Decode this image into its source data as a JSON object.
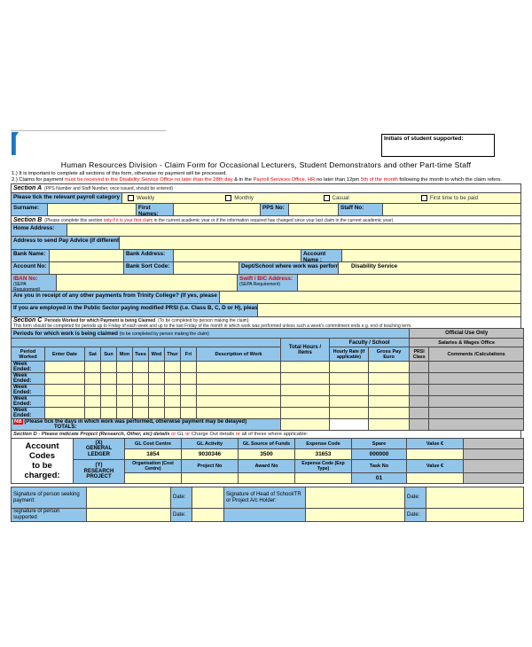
{
  "colors": {
    "cell_blue": "#92c5ea",
    "cell_yellow": "#ffffcc",
    "cell_gray": "#c0c0c0",
    "red_text": "#e00000",
    "logo_blue": "#1b76c0"
  },
  "header": {
    "initials_box_label": "Initials of student supported:",
    "title": "Human Resources Division - Claim Form for Occasional Lecturers, Student Demonstrators and other Part-time Staff",
    "note1": "1.) It is important to complete all sections of this form, otherwise no payment will be processed.",
    "note2": {
      "p1": "2.) Claims for payment ",
      "r1": "must be received in the Disability Service Office no later than the 28th day",
      "p2": " & in the ",
      "r2": "Payroll Services Office, HR",
      "p3": " no later than 12pm ",
      "r3": "5th of the month",
      "p4": " following the month to which the claim refers."
    }
  },
  "section_a": {
    "label": "Section A",
    "note": "(PPS Number and Staff Number, once issued, should be entered)"
  },
  "payroll": {
    "label": "Please tick the relevant payroll category to you:",
    "options": [
      "Weekly",
      "Monthly",
      "Casual",
      "First time to be paid"
    ]
  },
  "identity": {
    "surname": "Surname:",
    "first_names": "First Names:",
    "pps": "PPS No:",
    "staff": "Staff No:"
  },
  "section_b": {
    "label": "Section B",
    "p1": "(Please complete this section ",
    "r1": "only if it is your first claim",
    "p2": " in the current academic year or if the information required has changed since your last claim in the current academic year)"
  },
  "fields": {
    "home_address": "Home Address:",
    "pay_advice": "Address to send Pay Advice (if different):",
    "bank_name": "Bank Name:",
    "bank_address": "Bank Address:",
    "account_name": "Account Name :",
    "account_no": "Account No:",
    "sort_code": "Bank Sort Code:",
    "dept": "Dept/School where work was performed:",
    "dept_value": "Disability Service",
    "iban": "IBAN No:",
    "iban_sub": "(SEPA Requirement)",
    "swift": "Swift / BIC Address:",
    "swift_sub": "(SEPA Requirement)",
    "other_payments": "Are you in receipt of any other payments from Trinity College? (If yes, please specify):",
    "prsi_question": "If you are employed in the Public Sector paying modified PRSI (i.e. Class B, C, D or H), please state class:"
  },
  "section_c": {
    "label": "Section C",
    "bold": "Periods Worked for which Payment is being Claimed",
    "plain": " (To be completed by person making the claim)",
    "line2": "This form should be completed for periods up to Friday of each week and up to the last Friday of the month in which work was performed unless such a week's commitment ends e.g. end of teaching term."
  },
  "claims_table": {
    "header1": "Periods for which work is being claimed ",
    "header1_sub": "(to be completed by person making the claim)",
    "official": "Official Use Only",
    "salaries": "Salaries & Wages Office",
    "faculty": "Faculty / School",
    "total_hours": "Total Hours / Items",
    "columns": [
      "Period Worked",
      "Enter Date",
      "Sat",
      "Sun",
      "Mon",
      "Tues",
      "Wed",
      "Thur",
      "Fri",
      "Description of Work"
    ],
    "hourly": "Hourly Rate (if applicable)",
    "gross": "Gross Pay Euro",
    "prsi_class": "PRSI Class",
    "comments": "Comments /Calculations",
    "row_label": "Week Ended:",
    "row_count": 5,
    "nb": "NB",
    "nb_note": " (Please tick the days in which work was performed, otherwise payment may be delayed)",
    "totals": "TOTALS:"
  },
  "section_d": {
    "p1": "Section D - Please indicate Project (Research, Other, etc) details ",
    "r1": "or",
    "p2": " GL ",
    "r2": "or",
    "p3": " Charge Out details ",
    "r3": "or",
    "p4": " all of these where applicable:"
  },
  "account": {
    "label_1": "Account",
    "label_2": "Codes",
    "label_3": "to be",
    "label_4": "charged:",
    "gl": {
      "type_1": "(X)",
      "type_2": "GENERAL",
      "type_3": "LEDGER",
      "cols": [
        "GL Cost Centre",
        "GL Activity",
        "GL Source of Funds",
        "Expense Code",
        "Spare",
        "Value €"
      ],
      "values": [
        "1854",
        "9030346",
        "3500",
        "31653",
        "000000",
        ""
      ]
    },
    "research": {
      "type_1": "(Y)",
      "type_2": "RESEARCH",
      "type_3": "PROJECT",
      "cols": [
        "Organisation (Cost Centre)",
        "Project No",
        "Award No",
        "Expense Code (Exp Type)",
        "Task No",
        "Value €"
      ],
      "values": [
        "",
        "",
        "",
        "",
        "01",
        ""
      ]
    }
  },
  "signatures": {
    "seeking": "Signature of person seeking payment:",
    "head": "Signature of Head of School/TR or Project A/c Holder:",
    "supported": "Signature of person supported",
    "date": "Date:"
  }
}
